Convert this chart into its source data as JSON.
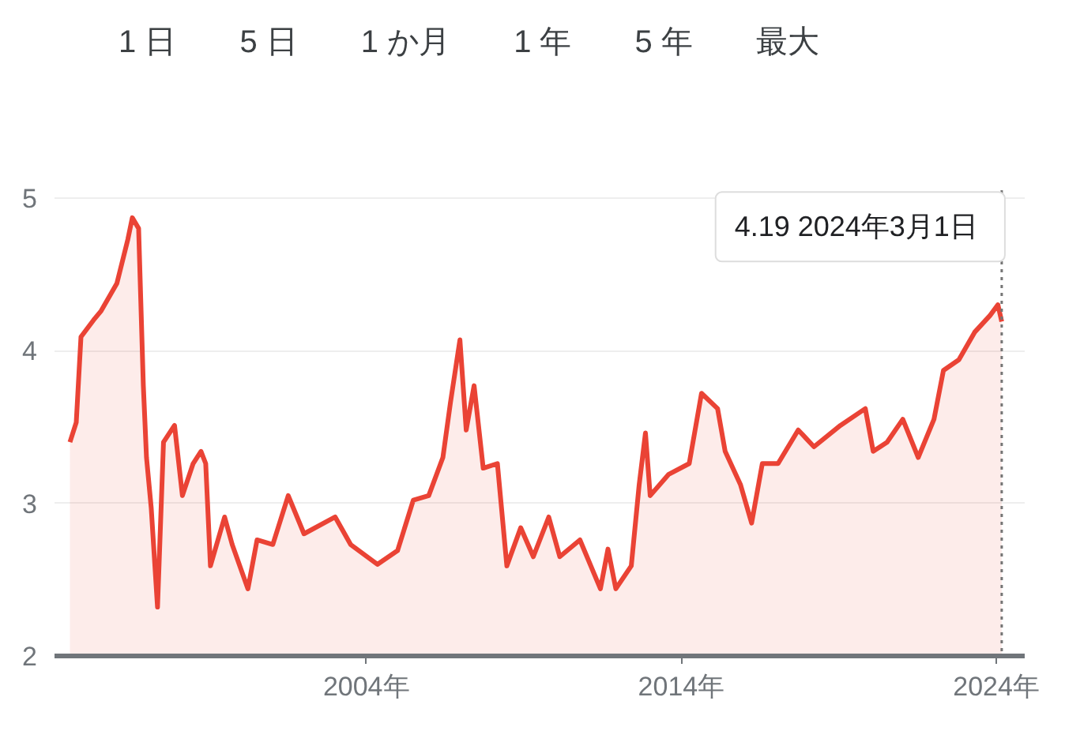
{
  "chart_data": {
    "type": "area",
    "annotations": [
      "1 日",
      "5 日",
      "1 か月",
      "1 年",
      "5 年",
      "最大",
      {
        "text": "4.19  2024年3月1日",
        "x": 2024.17,
        "y": 4.19
      }
    ],
    "x": [
      1994.59,
      1994.79,
      1994.94,
      1995.34,
      1995.58,
      1996.08,
      1996.43,
      1996.57,
      1996.77,
      1996.92,
      1997.02,
      1997.17,
      1997.37,
      1997.56,
      1997.91,
      1998.16,
      1998.5,
      1998.75,
      1998.9,
      1999.05,
      1999.5,
      1999.74,
      2000.24,
      2000.53,
      2001.03,
      2001.52,
      2002.02,
      2003.01,
      2003.5,
      2004.35,
      2004.99,
      2005.49,
      2005.98,
      2006.43,
      2006.67,
      2006.97,
      2007.17,
      2007.42,
      2007.71,
      2008.16,
      2008.46,
      2008.9,
      2009.3,
      2009.79,
      2010.14,
      2010.78,
      2011.43,
      2011.67,
      2011.92,
      2012.41,
      2012.66,
      2012.86,
      2013.01,
      2013.6,
      2014.25,
      2014.64,
      2015.15,
      2015.39,
      2015.88,
      2016.23,
      2016.57,
      2017.07,
      2017.71,
      2018.21,
      2019.05,
      2019.84,
      2020.09,
      2020.53,
      2021.03,
      2021.52,
      2022.02,
      2022.32,
      2022.81,
      2023.31,
      2023.8,
      2024.05,
      2024.17
    ],
    "series": [
      {
        "color": "#ea4335",
        "values": [
          3.4,
          3.53,
          4.09,
          4.2,
          4.26,
          4.44,
          4.73,
          4.87,
          4.8,
          3.77,
          3.3,
          2.97,
          2.32,
          3.4,
          3.51,
          3.05,
          3.26,
          3.34,
          3.26,
          2.59,
          2.91,
          2.73,
          2.44,
          2.76,
          2.73,
          3.05,
          2.8,
          2.91,
          2.73,
          2.6,
          2.69,
          3.02,
          3.05,
          3.3,
          3.66,
          4.07,
          3.48,
          3.77,
          3.23,
          3.26,
          2.59,
          2.84,
          2.65,
          2.91,
          2.65,
          2.76,
          2.44,
          2.7,
          2.44,
          2.59,
          3.12,
          3.46,
          3.05,
          3.19,
          3.26,
          3.72,
          3.62,
          3.34,
          3.12,
          2.87,
          3.26,
          3.26,
          3.48,
          3.37,
          3.51,
          3.62,
          3.34,
          3.4,
          3.55,
          3.3,
          3.55,
          3.87,
          3.94,
          4.12,
          4.23,
          4.3,
          4.19
        ]
      }
    ],
    "xlim": [
      1994.1,
      2024.9
    ],
    "ylim": [
      2,
      5.05
    ],
    "xticks": [
      {
        "value": 2004,
        "label": "2004年"
      },
      {
        "value": 2014,
        "label": "2014年"
      },
      {
        "value": 2024,
        "label": "2024年"
      }
    ],
    "yticks": [
      2,
      3,
      4,
      5
    ],
    "grid": "y",
    "ref_lines": [
      {
        "axis": "x",
        "value": 2024.17,
        "label": null,
        "color": "#757575",
        "line_style": "dotted"
      }
    ]
  }
}
